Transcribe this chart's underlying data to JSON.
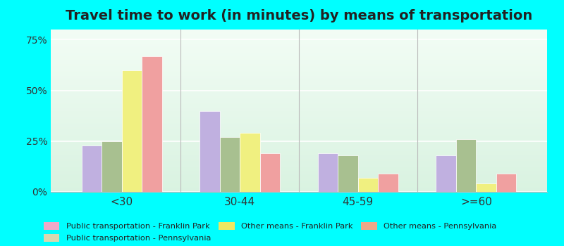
{
  "title": "Travel time to work (in minutes) by means of transportation",
  "categories": [
    "<30",
    "30-44",
    "45-59",
    ">=60"
  ],
  "series_order": [
    "Public transportation - Franklin Park",
    "Public transportation - Pennsylvania",
    "Other means - Franklin Park",
    "Other means - Pennsylvania"
  ],
  "series": {
    "Public transportation - Franklin Park": [
      23,
      40,
      19,
      18
    ],
    "Public transportation - Pennsylvania": [
      25,
      27,
      18,
      26
    ],
    "Other means - Franklin Park": [
      60,
      29,
      7,
      4
    ],
    "Other means - Pennsylvania": [
      67,
      19,
      9,
      9
    ]
  },
  "colors": {
    "Public transportation - Franklin Park": "#c0b0e0",
    "Public transportation - Pennsylvania": "#a8c090",
    "Other means - Franklin Park": "#f0f080",
    "Other means - Pennsylvania": "#f0a0a0"
  },
  "legend_colors": {
    "Public transportation - Franklin Park": "#f0a8c8",
    "Public transportation - Pennsylvania": "#d8d8b0",
    "Other means - Franklin Park": "#f0e860",
    "Other means - Pennsylvania": "#f0a888"
  },
  "ylim": [
    0,
    80
  ],
  "yticks": [
    0,
    25,
    50,
    75
  ],
  "ytick_labels": [
    "0%",
    "25%",
    "50%",
    "75%"
  ],
  "bg_outer": "#00ffff",
  "title_fontsize": 14,
  "bar_width": 0.17,
  "legend_order": [
    "Public transportation - Franklin Park",
    "Public transportation - Pennsylvania",
    "Other means - Franklin Park",
    "Other means - Pennsylvania"
  ]
}
